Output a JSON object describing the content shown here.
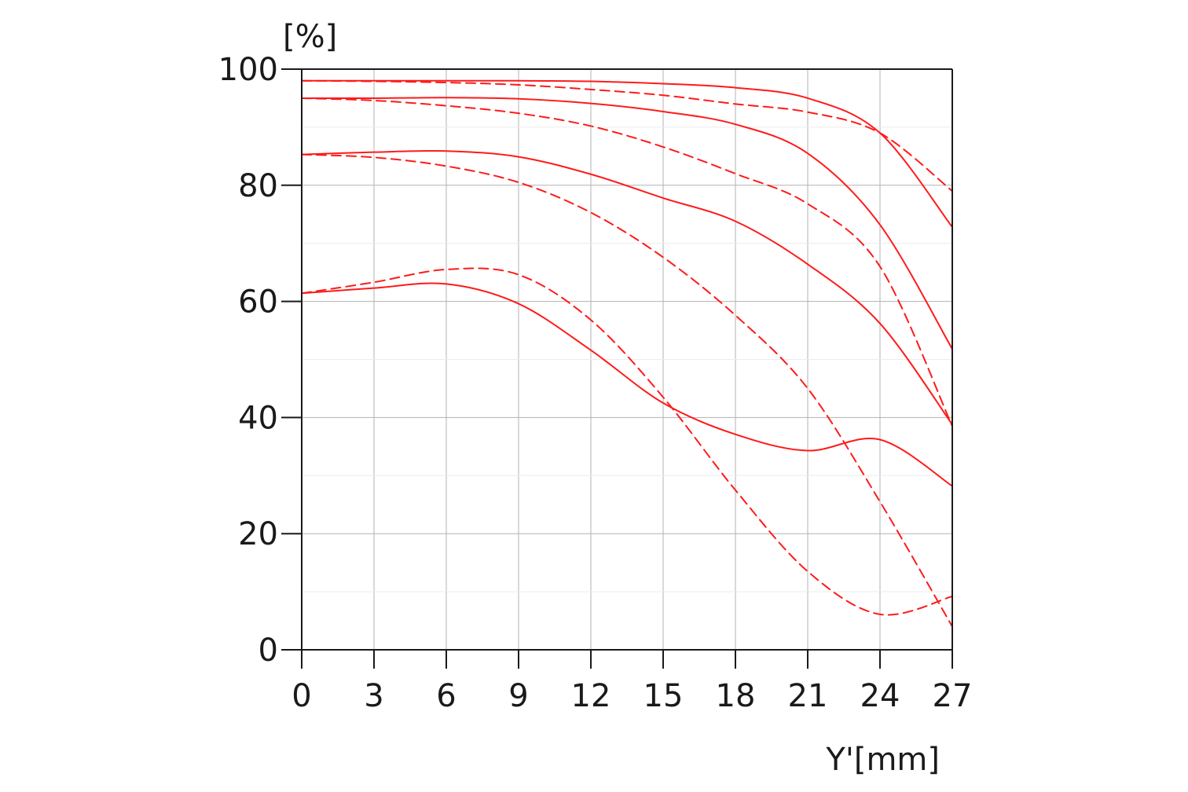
{
  "chart_data": {
    "type": "line",
    "title": "",
    "xlabel": "Y'[mm]",
    "ylabel": "[%]",
    "xlim": [
      0,
      27
    ],
    "ylim": [
      0,
      100
    ],
    "xticks": [
      0,
      3,
      6,
      9,
      12,
      15,
      18,
      21,
      24,
      27
    ],
    "yticks": [
      0,
      20,
      40,
      60,
      80,
      100
    ],
    "grid": true,
    "legend": "none",
    "line_color": "#ff1a1a",
    "grid_color": "#b3b3b3",
    "x": [
      0,
      3,
      6,
      9,
      12,
      15,
      18,
      21,
      24,
      27
    ],
    "series": [
      {
        "style": "solid",
        "values": [
          98.0,
          98.0,
          98.0,
          98.0,
          97.9,
          97.5,
          96.8,
          95.0,
          89.0,
          72.8
        ]
      },
      {
        "style": "dashed",
        "values": [
          98.0,
          97.9,
          97.7,
          97.3,
          96.5,
          95.5,
          94.0,
          92.6,
          89.0,
          79.0
        ]
      },
      {
        "style": "solid",
        "values": [
          95.0,
          95.0,
          95.1,
          94.9,
          94.1,
          92.7,
          90.5,
          85.5,
          73.2,
          51.8
        ]
      },
      {
        "style": "dashed",
        "values": [
          95.0,
          94.6,
          93.7,
          92.4,
          90.2,
          86.6,
          82.0,
          76.8,
          66.0,
          38.5
        ]
      },
      {
        "style": "solid",
        "values": [
          85.3,
          85.7,
          85.9,
          84.9,
          81.9,
          77.8,
          73.8,
          66.4,
          56.2,
          38.8
        ]
      },
      {
        "style": "dashed",
        "values": [
          85.3,
          84.8,
          83.3,
          80.5,
          75.3,
          67.6,
          57.6,
          45.0,
          25.5,
          4.0
        ]
      },
      {
        "style": "solid",
        "values": [
          61.4,
          62.3,
          63.0,
          59.6,
          51.6,
          42.5,
          37.1,
          34.3,
          36.2,
          28.2
        ]
      },
      {
        "style": "dashed",
        "values": [
          61.4,
          63.3,
          65.5,
          64.6,
          56.8,
          43.5,
          27.5,
          13.5,
          6.1,
          9.2
        ]
      }
    ]
  }
}
